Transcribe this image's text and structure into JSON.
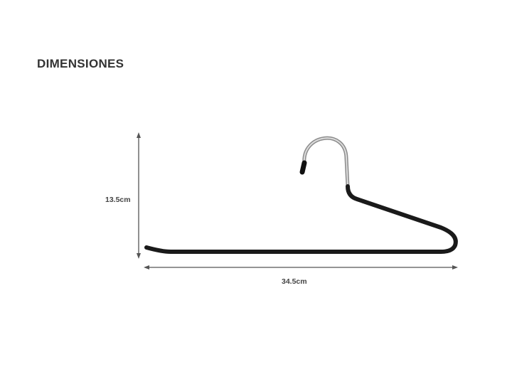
{
  "title": "DIMENSIONES",
  "height_label": "13.5cm",
  "width_label": "34.5cm",
  "colors": {
    "hanger": "#1a1a1a",
    "hook": "#b8b8b8",
    "arrow": "#555555",
    "text": "#333333"
  }
}
